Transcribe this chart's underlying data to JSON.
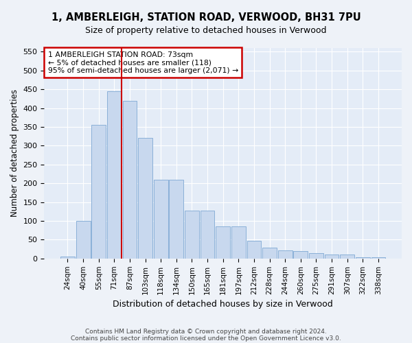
{
  "title1": "1, AMBERLEIGH, STATION ROAD, VERWOOD, BH31 7PU",
  "title2": "Size of property relative to detached houses in Verwood",
  "xlabel": "Distribution of detached houses by size in Verwood",
  "ylabel": "Number of detached properties",
  "categories": [
    "24sqm",
    "40sqm",
    "55sqm",
    "71sqm",
    "87sqm",
    "103sqm",
    "118sqm",
    "134sqm",
    "150sqm",
    "165sqm",
    "181sqm",
    "197sqm",
    "212sqm",
    "228sqm",
    "244sqm",
    "260sqm",
    "275sqm",
    "291sqm",
    "307sqm",
    "322sqm",
    "338sqm"
  ],
  "values": [
    5,
    100,
    355,
    445,
    420,
    320,
    210,
    210,
    128,
    128,
    85,
    85,
    48,
    28,
    22,
    20,
    15,
    10,
    10,
    3,
    3
  ],
  "bar_color": "#c8d8ee",
  "bar_edge_color": "#8ab0d8",
  "vline_color": "#cc0000",
  "annotation_text": "1 AMBERLEIGH STATION ROAD: 73sqm\n← 5% of detached houses are smaller (118)\n95% of semi-detached houses are larger (2,071) →",
  "ylim": [
    0,
    560
  ],
  "yticks": [
    0,
    50,
    100,
    150,
    200,
    250,
    300,
    350,
    400,
    450,
    500,
    550
  ],
  "footer1": "Contains HM Land Registry data © Crown copyright and database right 2024.",
  "footer2": "Contains public sector information licensed under the Open Government Licence v3.0.",
  "bg_color": "#eef2f8",
  "plot_bg_color": "#e4ecf7"
}
